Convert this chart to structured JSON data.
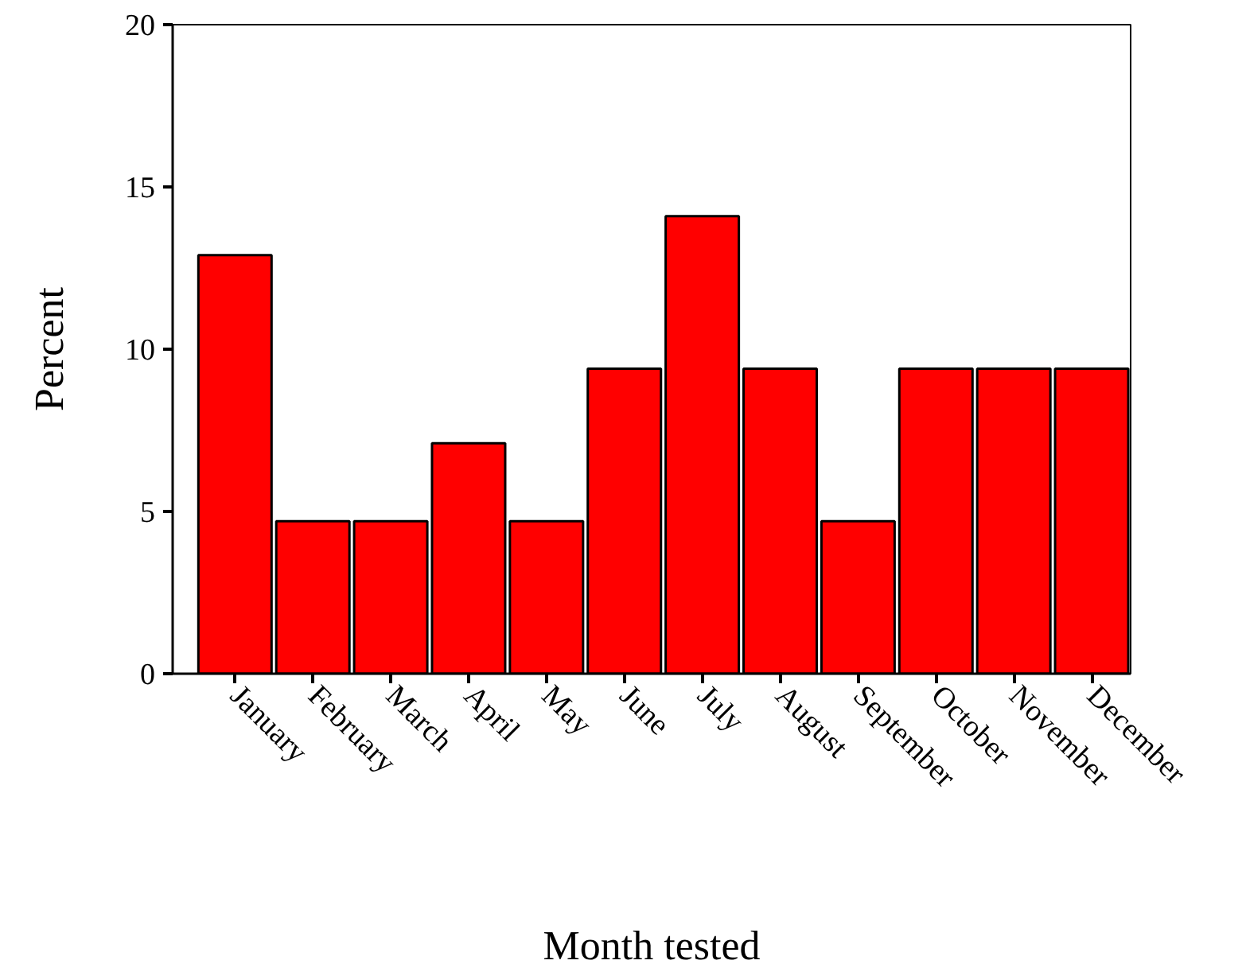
{
  "chart_data": {
    "type": "bar",
    "xlabel": "Month tested",
    "ylabel": "Percent",
    "categories": [
      "January",
      "February",
      "March",
      "April",
      "May",
      "June",
      "July",
      "August",
      "September",
      "October",
      "November",
      "December"
    ],
    "values": [
      12.9,
      4.7,
      4.7,
      7.1,
      4.7,
      9.4,
      14.1,
      9.4,
      4.7,
      9.4,
      9.4,
      9.4
    ],
    "color": "#ff0000",
    "ylim": [
      0,
      20
    ],
    "yticks": [
      0,
      5,
      10,
      15,
      20
    ],
    "grid": false
  }
}
